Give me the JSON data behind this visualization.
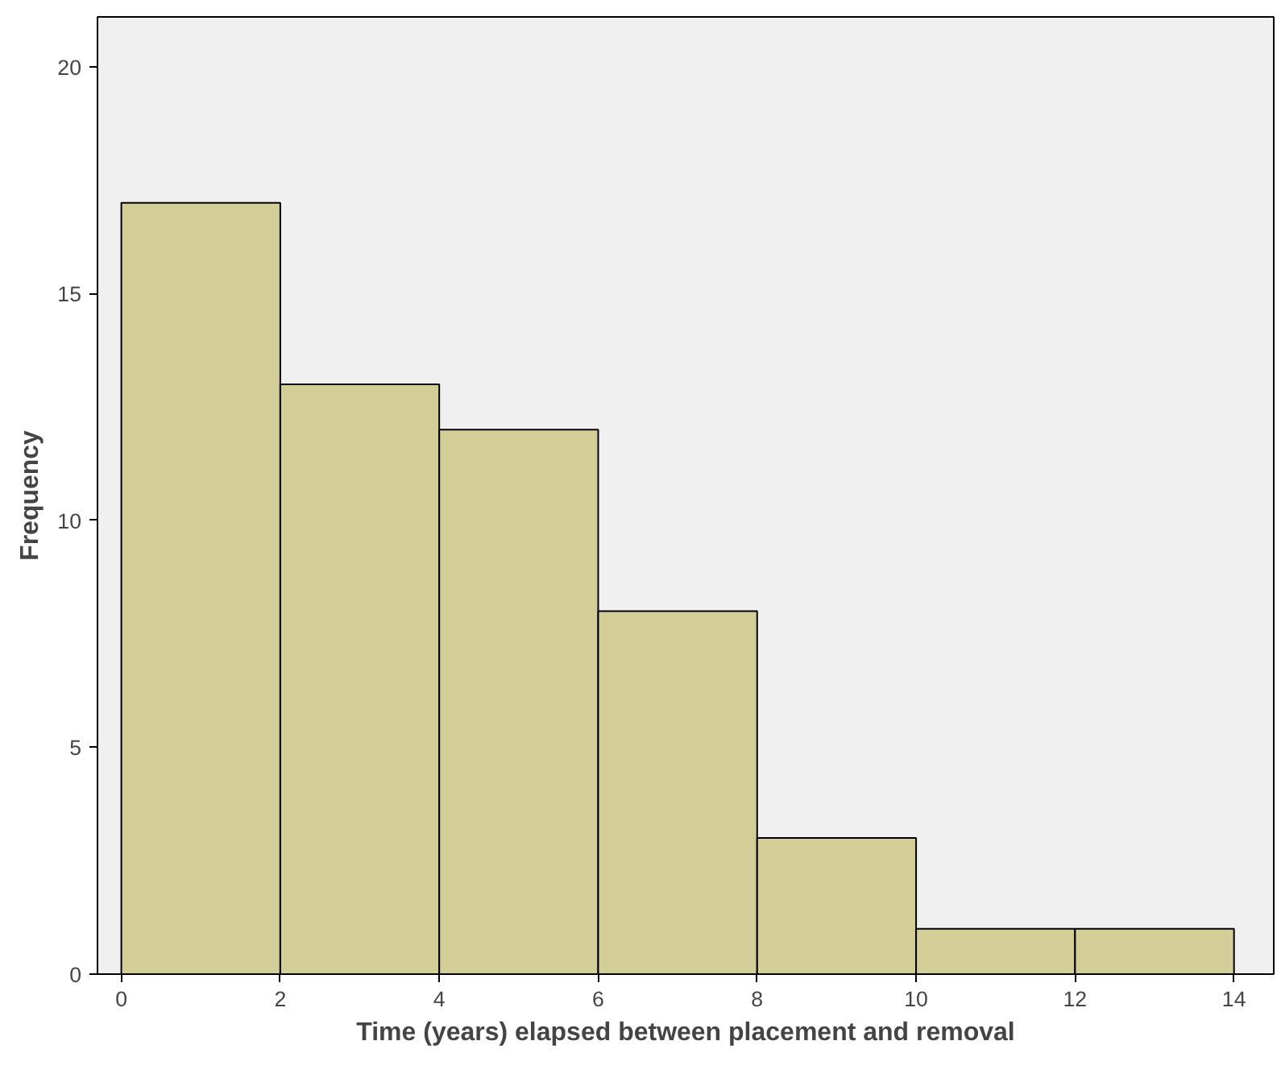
{
  "chart_data": {
    "type": "histogram",
    "xlabel": "Time (years) elapsed between placement and removal",
    "ylabel": "Frequency",
    "bins": [
      0,
      2,
      4,
      6,
      8,
      10,
      12,
      14
    ],
    "values": [
      17,
      13,
      12,
      8,
      3,
      1,
      1
    ],
    "color": "#d3ce97",
    "xlim": [
      -0.3,
      14.5
    ],
    "xticks": [
      0,
      2,
      4,
      6,
      8,
      10,
      12,
      14
    ],
    "ylim": [
      0,
      21.1
    ],
    "yticks": [
      0,
      5,
      10,
      15,
      20
    ],
    "grid": false
  }
}
